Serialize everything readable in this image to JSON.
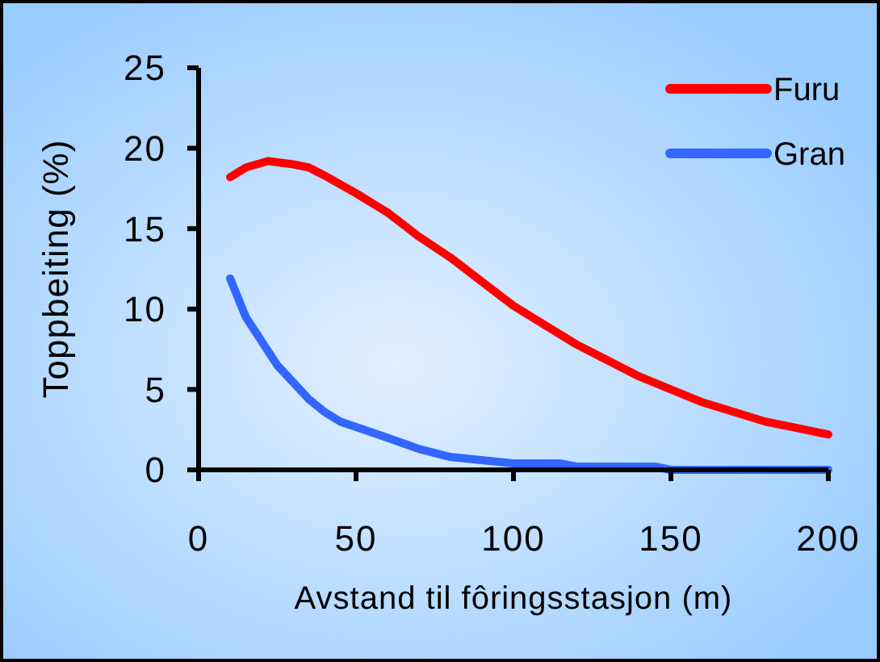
{
  "chart_data": {
    "type": "line",
    "xlabel": "Avstand til fôringsstasjon (m)",
    "ylabel": "Toppbeiting (%)",
    "xlim": [
      0,
      200
    ],
    "xticks": [
      0,
      50,
      100,
      150,
      200
    ],
    "ylim": [
      0,
      25
    ],
    "yticks": [
      0,
      5,
      10,
      15,
      20,
      25
    ],
    "legend": "top right",
    "grid": false,
    "line_style": "solid",
    "series": [
      {
        "name": "Furu",
        "color": "#ff0000",
        "x": [
          10,
          15,
          22,
          30,
          35,
          40,
          50,
          60,
          70,
          80,
          90,
          100,
          110,
          120,
          130,
          140,
          150,
          160,
          170,
          180,
          190,
          200
        ],
        "values": [
          18.2,
          18.8,
          19.2,
          19.0,
          18.8,
          18.3,
          17.2,
          16.0,
          14.5,
          13.2,
          11.7,
          10.2,
          9.0,
          7.8,
          6.8,
          5.8,
          5.0,
          4.2,
          3.6,
          3.0,
          2.6,
          2.2
        ]
      },
      {
        "name": "Gran",
        "color": "#3366ff",
        "x": [
          10,
          15,
          25,
          35,
          40,
          45,
          60,
          70,
          80,
          90,
          100,
          115,
          120,
          145,
          150,
          200
        ],
        "values": [
          11.9,
          9.5,
          6.5,
          4.4,
          3.6,
          3.0,
          2.0,
          1.3,
          0.8,
          0.6,
          0.4,
          0.4,
          0.2,
          0.2,
          0,
          0
        ]
      }
    ]
  }
}
